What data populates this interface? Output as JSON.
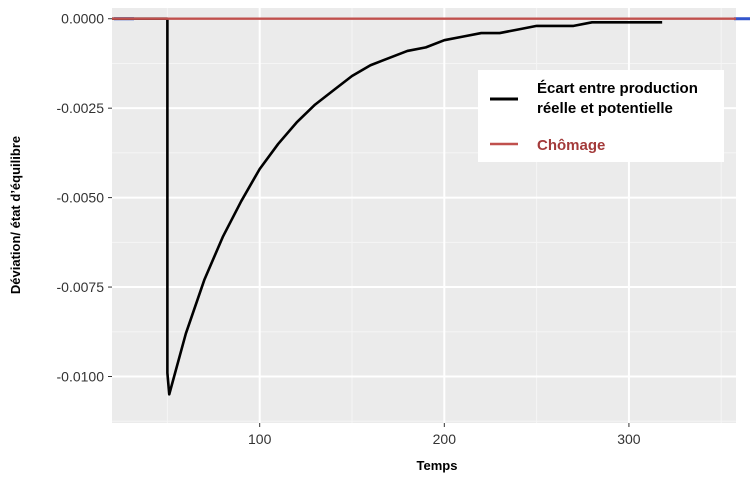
{
  "chart_data": {
    "type": "line",
    "xlabel": "Temps",
    "ylabel": "Déviation/ état d’équilibre",
    "xlim": [
      20,
      358
    ],
    "ylim": [
      -0.0113,
      0.0003
    ],
    "x_ticks": [
      100,
      200,
      300
    ],
    "x_tick_labels": [
      "100",
      "200",
      "300"
    ],
    "y_ticks": [
      0.0,
      -0.0025,
      -0.005,
      -0.0075,
      -0.01
    ],
    "y_tick_labels": [
      "0.0000",
      "-0.0025",
      "-0.0050",
      "-0.0075",
      "-0.0100"
    ],
    "grid": true,
    "legend_position": "top-right",
    "colors": {
      "output_gap": "#000000",
      "unemployment": "#c0504d",
      "baseline": "#3355cc",
      "panel": "#ebebeb"
    },
    "series": [
      {
        "name": "Écart entre production réelle et potentielle",
        "color": "#000000",
        "x": [
          20,
          50,
          50,
          51,
          60,
          70,
          80,
          90,
          100,
          110,
          120,
          130,
          140,
          150,
          160,
          170,
          180,
          190,
          200,
          210,
          220,
          230,
          240,
          250,
          260,
          270,
          280,
          290,
          300,
          310,
          318
        ],
        "y": [
          0,
          0,
          -0.0099,
          -0.0105,
          -0.0088,
          -0.0073,
          -0.0061,
          -0.0051,
          -0.0042,
          -0.0035,
          -0.0029,
          -0.0024,
          -0.002,
          -0.0016,
          -0.0013,
          -0.0011,
          -0.0009,
          -0.0008,
          -0.0006,
          -0.0005,
          -0.0004,
          -0.0004,
          -0.0003,
          -0.0002,
          -0.0002,
          -0.0002,
          -0.0001,
          -0.0001,
          -0.0001,
          -0.0001,
          -0.0001
        ]
      },
      {
        "name": "Chômage",
        "color": "#c0504d",
        "x": [
          20,
          358
        ],
        "y": [
          0,
          0
        ]
      }
    ]
  }
}
